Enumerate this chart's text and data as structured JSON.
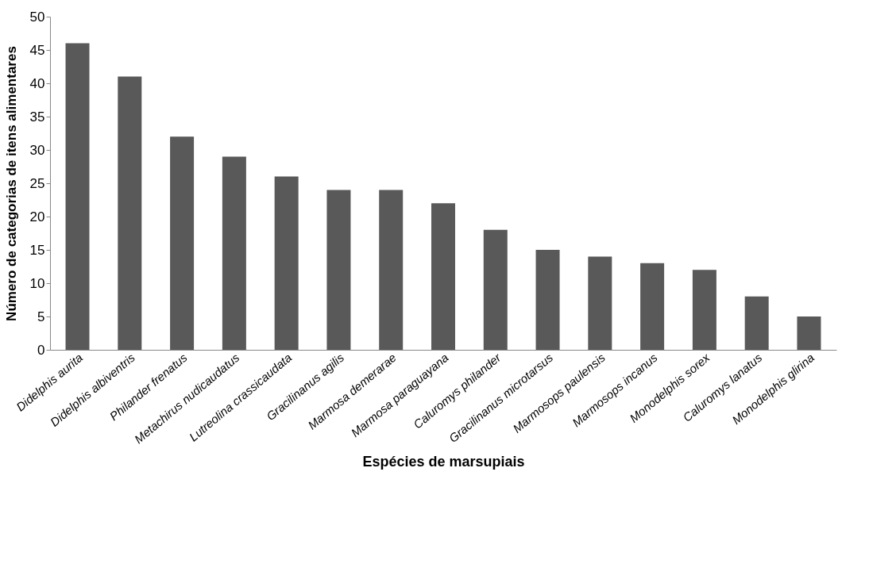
{
  "chart_data": {
    "type": "bar",
    "xlabel": "Espécies de marsupiais",
    "ylabel": "Número de categorias de itens alimentares",
    "categories": [
      "Didelphis aurita",
      "Didelphis albiventris",
      "Philander frenatus",
      "Metachirus nudicaudatus",
      "Lutreolina crassicaudata",
      "Gracilinanus agilis",
      "Marmosa demerarae",
      "Marmosa paraguayana",
      "Caluromys philander",
      "Gracilinanus microtarsus",
      "Marmosops paulensis",
      "Marmosops incanus",
      "Monodelphis sorex",
      "Caluromys lanatus",
      "Monodelphis glirina"
    ],
    "values": [
      46,
      41,
      32,
      29,
      26,
      24,
      24,
      22,
      18,
      15,
      14,
      13,
      12,
      8,
      5
    ],
    "color": "#595959",
    "ylim": [
      0,
      50
    ],
    "yticks": [
      0,
      5,
      10,
      15,
      20,
      25,
      30,
      35,
      40,
      45,
      50
    ],
    "grid": false
  }
}
